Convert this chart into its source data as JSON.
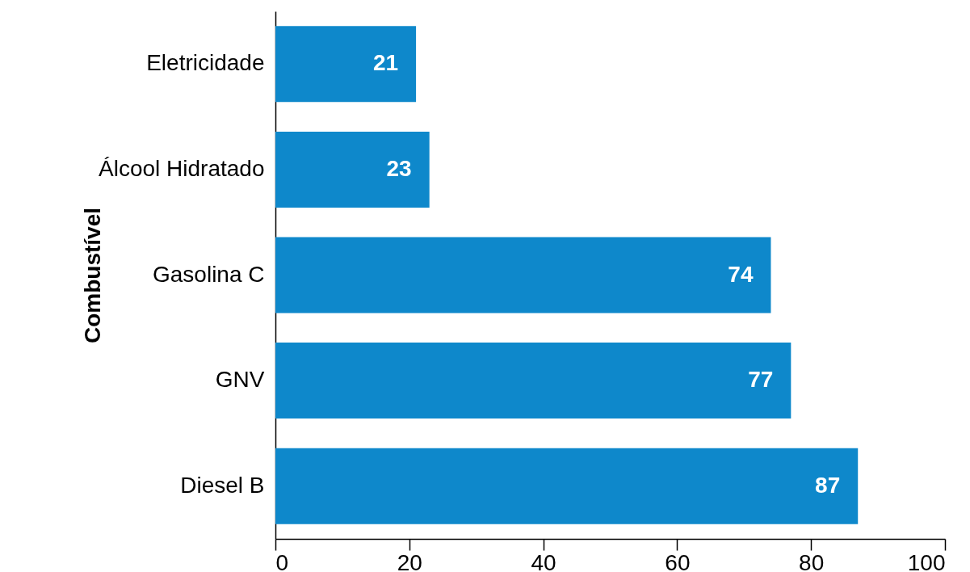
{
  "chart_data": {
    "type": "bar",
    "orientation": "horizontal",
    "ylabel": "Combustível",
    "categories": [
      "Eletricidade",
      "Álcool Hidratado",
      "Gasolina C",
      "GNV",
      "Diesel B"
    ],
    "values": [
      21,
      23,
      74,
      77,
      87
    ],
    "color": "#0e88cb",
    "xlim": [
      0,
      100
    ],
    "xticks": [
      0,
      20,
      40,
      60,
      80,
      100
    ],
    "grid": false,
    "data_labels": true
  }
}
